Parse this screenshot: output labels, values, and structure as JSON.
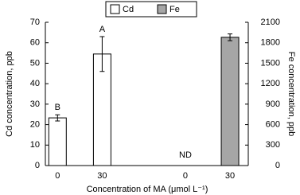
{
  "chart_data": {
    "type": "bar",
    "xlabel": "Concentration of MA (μmol L⁻¹)",
    "ylabel": "Cd concentration, ppb",
    "y2label": "Fe concentration, ppb",
    "categories": [
      "0",
      "30",
      "0",
      "30"
    ],
    "series": [
      {
        "name": "Cd",
        "color": "#ffffff",
        "values": [
          23.3,
          54.5,
          null,
          null
        ],
        "errors": [
          1.5,
          8.5,
          null,
          null
        ],
        "annotations": [
          "B",
          "A",
          null,
          null
        ]
      },
      {
        "name": "Fe",
        "color": "#a6a6a6",
        "axis": "y2",
        "values": [
          null,
          null,
          null,
          1880
        ],
        "errors": [
          null,
          null,
          null,
          50
        ],
        "annotations": [
          null,
          null,
          "ND",
          null
        ]
      }
    ],
    "ylim": [
      0,
      70
    ],
    "yticks": [
      0,
      10,
      20,
      30,
      40,
      50,
      60,
      70
    ],
    "y2lim": [
      0,
      2100
    ],
    "y2ticks": [
      0,
      300,
      600,
      900,
      1200,
      1500,
      1800,
      2100
    ],
    "grid": false
  }
}
